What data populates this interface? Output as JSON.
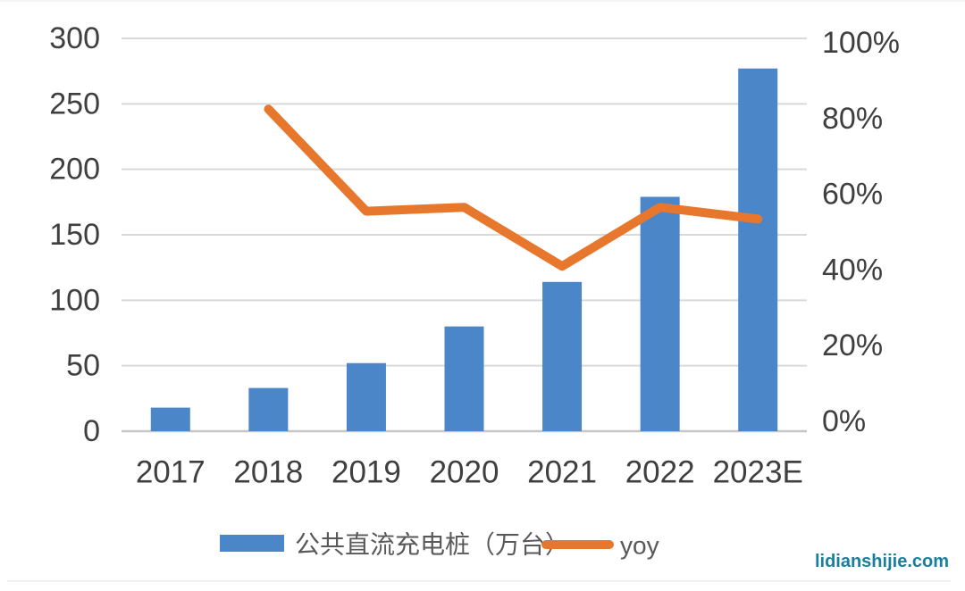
{
  "chart_data": {
    "type": "combo-bar-line",
    "title": "",
    "categories": [
      "2017",
      "2018",
      "2019",
      "2020",
      "2021",
      "2022",
      "2023E"
    ],
    "series": [
      {
        "name": "公共直流充电桩（万台）",
        "type": "bar",
        "axis": "left",
        "unit": "万台",
        "values": [
          18,
          33,
          52,
          80,
          114,
          179,
          277
        ]
      },
      {
        "name": "yoy",
        "type": "line",
        "axis": "right",
        "unit": "%",
        "values": [
          null,
          82,
          56,
          57,
          42,
          57,
          54
        ]
      }
    ],
    "left_axis": {
      "min": 0,
      "max": 300,
      "tick_step": 50,
      "tick_labels": [
        "300",
        "250",
        "200",
        "150",
        "100",
        "50",
        "0"
      ]
    },
    "right_axis": {
      "min": 0,
      "max": 100,
      "tick_step": 20,
      "tick_labels": [
        "100%",
        "80%",
        "60%",
        "40%",
        "20%",
        "0%"
      ]
    },
    "grid": true,
    "legend_position": "bottom"
  },
  "watermark": {
    "text": "lidianshijie.com"
  },
  "colors": {
    "bar": "#4a86c8",
    "line": "#e8772e",
    "grid": "#d9d9d9",
    "axis_line": "#c6c6c6",
    "axis_text": "#3f3f3f",
    "legend_text": "#595959",
    "watermark": "#1a7f9e",
    "background": "#ffffff",
    "edge_line": "#ebebeb"
  }
}
